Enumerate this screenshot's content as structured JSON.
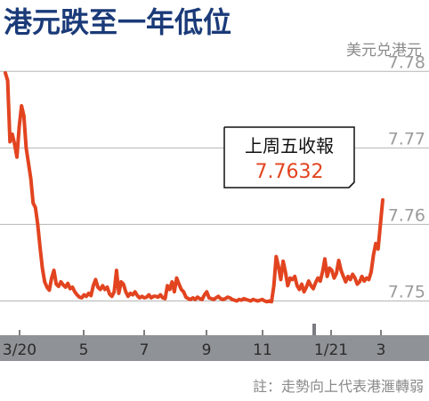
{
  "chart_data": {
    "type": "line",
    "title": "港元跌至一年低位",
    "unit_label": "美元兑港元",
    "ylim": [
      7.7475,
      7.7805
    ],
    "yticks": [
      "7.78",
      "7.77",
      "7.76",
      "7.75"
    ],
    "xticks": [
      "3/20",
      "5",
      "7",
      "9",
      "11",
      "1/21",
      "3"
    ],
    "callout": {
      "label": "上周五收報",
      "value": "7.7632"
    },
    "note": "註：走勢向上代表港滙轉弱",
    "colors": {
      "line": "#e24420",
      "title": "#1a3a78",
      "axis_band": "#8f9296",
      "grid": "#b5b5b5"
    },
    "series": [
      {
        "values": [
          7.7798,
          7.7788,
          7.7708,
          7.7718,
          7.7705,
          7.7688,
          7.7728,
          7.7755,
          7.7742,
          7.77,
          7.768,
          7.766,
          7.7628,
          7.7622,
          7.76,
          7.757,
          7.7543,
          7.7525,
          7.7518,
          7.7514,
          7.753,
          7.754,
          7.7522,
          7.7519,
          7.7525,
          7.7521,
          7.7518,
          7.7523,
          7.7516,
          7.7518,
          7.7512,
          7.7508,
          7.7505,
          7.7504,
          7.7508,
          7.7506,
          7.751,
          7.7507,
          7.752,
          7.7528,
          7.7518,
          7.7515,
          7.752,
          7.7515,
          7.7518,
          7.7509,
          7.7506,
          7.7512,
          7.754,
          7.751,
          7.7525,
          7.7522,
          7.7512,
          7.7506,
          7.751,
          7.7508,
          7.7512,
          7.7507,
          7.7504,
          7.7506,
          7.7504,
          7.7505,
          7.7508,
          7.7504,
          7.7506,
          7.7506,
          7.7505,
          7.7508,
          7.7504,
          7.7503,
          7.752,
          7.7515,
          7.7525,
          7.7512,
          7.753,
          7.7522,
          7.7515,
          7.7512,
          7.7505,
          7.7503,
          7.7502,
          7.7504,
          7.7502,
          7.7505,
          7.7503,
          7.7502,
          7.7508,
          7.7512,
          7.7504,
          7.7503,
          7.7502,
          7.7504,
          7.7506,
          7.7503,
          7.7502,
          7.7503,
          7.7505,
          7.7504,
          7.7502,
          7.7501,
          7.75,
          7.7502,
          7.7501,
          7.7503,
          7.7502,
          7.7501,
          7.75,
          7.7502,
          7.7501,
          7.75,
          7.7501,
          7.7502,
          7.75,
          7.7499,
          7.75,
          7.7499,
          7.752,
          7.7558,
          7.7545,
          7.7528,
          7.7552,
          7.7538,
          7.752,
          7.753,
          7.7528,
          7.7532,
          7.752,
          7.7515,
          7.7522,
          7.7512,
          7.7518,
          7.7526,
          7.752,
          7.7516,
          7.7524,
          7.753,
          7.7526,
          7.7538,
          7.7555,
          7.7532,
          7.7543,
          7.754,
          7.753,
          7.7536,
          7.7553,
          7.754,
          7.7532,
          7.7525,
          7.7532,
          7.7528,
          7.7535,
          7.753,
          7.7522,
          7.7525,
          7.7532,
          7.7526,
          7.753,
          7.7528,
          7.7538,
          7.756,
          7.7575,
          7.7568,
          7.76,
          7.7632
        ]
      }
    ]
  }
}
